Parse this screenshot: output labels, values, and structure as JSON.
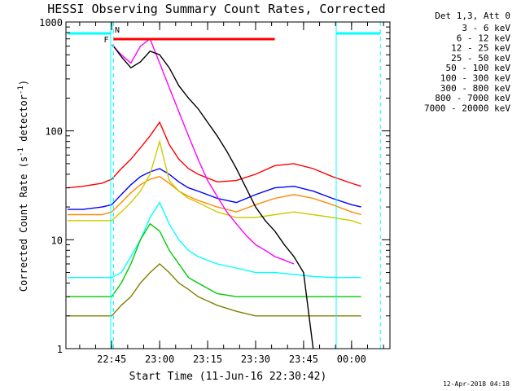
{
  "chart_data": {
    "type": "line",
    "title": "HESSI Observing Summary Count Rates, Corrected",
    "xlabel": "Start Time (11-Jun-16 22:30:42)",
    "ylabel": "Corrected Count Rate (s",
    "ylabel_sup1": "-1",
    "ylabel_mid": " detector",
    "ylabel_sup2": "-1",
    "ylabel_end": ")",
    "yscale": "log",
    "ylim": [
      1,
      1000
    ],
    "xlim": [
      22.5117,
      24.2
    ],
    "x_unit": "hours since 00:00 on 11-Jun-16",
    "y_ticks": [
      {
        "value": 1,
        "label": "1"
      },
      {
        "value": 10,
        "label": "10"
      },
      {
        "value": 100,
        "label": "100"
      },
      {
        "value": 1000,
        "label": "1000"
      }
    ],
    "x_ticks": [
      {
        "value": 22.75,
        "label": "22:45"
      },
      {
        "value": 23.0,
        "label": "23:00"
      },
      {
        "value": 23.25,
        "label": "23:15"
      },
      {
        "value": 23.5,
        "label": "23:30"
      },
      {
        "value": 23.75,
        "label": "23:45"
      },
      {
        "value": 24.0,
        "label": "00:00"
      }
    ],
    "legend_header": "Det 1,3, Att 0",
    "legend_placement": "right",
    "series": [
      {
        "name": "3 - 6 keV",
        "color": "#000000",
        "x": [
          22.76,
          22.8,
          22.85,
          22.9,
          22.95,
          23.0,
          23.05,
          23.1,
          23.15,
          23.2,
          23.25,
          23.3,
          23.35,
          23.4,
          23.45,
          23.5,
          23.55,
          23.6,
          23.65,
          23.7,
          23.75,
          23.8
        ],
        "y": [
          600,
          480,
          380,
          430,
          540,
          500,
          380,
          260,
          200,
          160,
          120,
          90,
          65,
          45,
          30,
          20,
          15,
          12,
          9,
          7,
          5,
          1
        ]
      },
      {
        "name": "6 - 12 keV",
        "color": "#ff00ff",
        "x": [
          22.75,
          22.8,
          22.85,
          22.9,
          22.95,
          23.0,
          23.05,
          23.1,
          23.15,
          23.2,
          23.25,
          23.3,
          23.35,
          23.4,
          23.45,
          23.5,
          23.55,
          23.6,
          23.65,
          23.7
        ],
        "y": [
          620,
          500,
          420,
          600,
          700,
          420,
          250,
          150,
          90,
          55,
          35,
          25,
          18,
          14,
          11,
          9,
          8,
          7,
          6.5,
          6
        ]
      },
      {
        "name": "12 - 25 keV",
        "color": "#00cc00",
        "x": [
          22.52,
          22.6,
          22.7,
          22.75,
          22.8,
          22.85,
          22.9,
          22.95,
          23.0,
          23.05,
          23.1,
          23.15,
          23.2,
          23.3,
          23.4,
          23.5,
          23.6,
          23.7,
          23.8,
          23.9,
          24.0,
          24.05
        ],
        "y": [
          3,
          3,
          3,
          3,
          4,
          6,
          10,
          14,
          12,
          8,
          6,
          4.5,
          4,
          3.2,
          3,
          3,
          3,
          3,
          3,
          3,
          3,
          3
        ]
      },
      {
        "name": "25 - 50 keV",
        "color": "#00ffff",
        "x": [
          22.52,
          22.6,
          22.7,
          22.75,
          22.8,
          22.85,
          22.9,
          22.95,
          23.0,
          23.05,
          23.1,
          23.15,
          23.2,
          23.3,
          23.4,
          23.5,
          23.6,
          23.7,
          23.8,
          23.9,
          24.0,
          24.05
        ],
        "y": [
          4.5,
          4.5,
          4.5,
          4.5,
          5,
          7,
          10,
          16,
          22,
          14,
          10,
          8,
          7,
          6,
          5.5,
          5,
          5,
          4.8,
          4.6,
          4.5,
          4.5,
          4.5
        ]
      },
      {
        "name": "50 - 100 keV",
        "color": "#cccc00",
        "x": [
          22.52,
          22.6,
          22.7,
          22.75,
          22.8,
          22.85,
          22.9,
          22.95,
          23.0,
          23.05,
          23.1,
          23.15,
          23.2,
          23.3,
          23.4,
          23.5,
          23.6,
          23.7,
          23.8,
          23.9,
          24.0,
          24.05
        ],
        "y": [
          15,
          15,
          15,
          15,
          18,
          22,
          28,
          40,
          80,
          35,
          28,
          24,
          22,
          18,
          16,
          16,
          17,
          18,
          17,
          16,
          15,
          14
        ]
      },
      {
        "name": "100 - 300 keV",
        "color": "#ff0000",
        "x": [
          22.52,
          22.6,
          22.7,
          22.75,
          22.8,
          22.85,
          22.9,
          22.95,
          23.0,
          23.05,
          23.1,
          23.15,
          23.2,
          23.3,
          23.4,
          23.5,
          23.6,
          23.7,
          23.8,
          23.9,
          24.0,
          24.05
        ],
        "y": [
          30,
          31,
          33,
          36,
          45,
          55,
          70,
          90,
          120,
          75,
          55,
          45,
          40,
          34,
          35,
          40,
          48,
          50,
          45,
          38,
          33,
          31
        ]
      },
      {
        "name": "300 - 800 keV",
        "color": "#0000ff",
        "x": [
          22.52,
          22.6,
          22.7,
          22.75,
          22.8,
          22.85,
          22.9,
          22.95,
          23.0,
          23.05,
          23.1,
          23.15,
          23.2,
          23.3,
          23.4,
          23.5,
          23.6,
          23.7,
          23.8,
          23.9,
          24.0,
          24.05
        ],
        "y": [
          19,
          19,
          20,
          21,
          26,
          32,
          38,
          42,
          45,
          40,
          34,
          30,
          28,
          24,
          22,
          26,
          30,
          31,
          28,
          24,
          21,
          20
        ]
      },
      {
        "name": "800 - 7000 keV",
        "color": "#ff8800",
        "x": [
          22.52,
          22.6,
          22.7,
          22.75,
          22.8,
          22.85,
          22.9,
          22.95,
          23.0,
          23.05,
          23.1,
          23.15,
          23.2,
          23.3,
          23.4,
          23.5,
          23.6,
          23.7,
          23.8,
          23.9,
          24.0,
          24.05
        ],
        "y": [
          17,
          17,
          17,
          18,
          22,
          27,
          32,
          36,
          38,
          33,
          28,
          25,
          23,
          20,
          18,
          21,
          24,
          26,
          24,
          21,
          18,
          17
        ]
      },
      {
        "name": "7000 - 20000 keV",
        "color": "#808000",
        "x": [
          22.52,
          22.6,
          22.7,
          22.75,
          22.8,
          22.85,
          22.9,
          22.95,
          23.0,
          23.05,
          23.1,
          23.15,
          23.2,
          23.3,
          23.4,
          23.5,
          23.6,
          23.7,
          23.8,
          23.9,
          24.0,
          24.05
        ],
        "y": [
          2,
          2,
          2,
          2,
          2.5,
          3,
          4,
          5,
          6,
          5,
          4,
          3.5,
          3,
          2.5,
          2.2,
          2,
          2,
          2,
          2,
          2,
          2,
          2
        ]
      }
    ],
    "annotations": {
      "flare_label": "F",
      "flare_color": "#ff0000",
      "flare_start": 22.76,
      "flare_end": 23.6,
      "night_label": "N",
      "night_color": "#00ffff",
      "night_segments": [
        [
          22.52,
          22.745
        ],
        [
          23.92,
          24.15
        ]
      ],
      "saa_lines": [
        22.745,
        23.92
      ],
      "dashed_lines": [
        22.76,
        24.15
      ]
    },
    "grid": false
  },
  "footer": {
    "timestamp": "12-Apr-2018 04:18"
  }
}
